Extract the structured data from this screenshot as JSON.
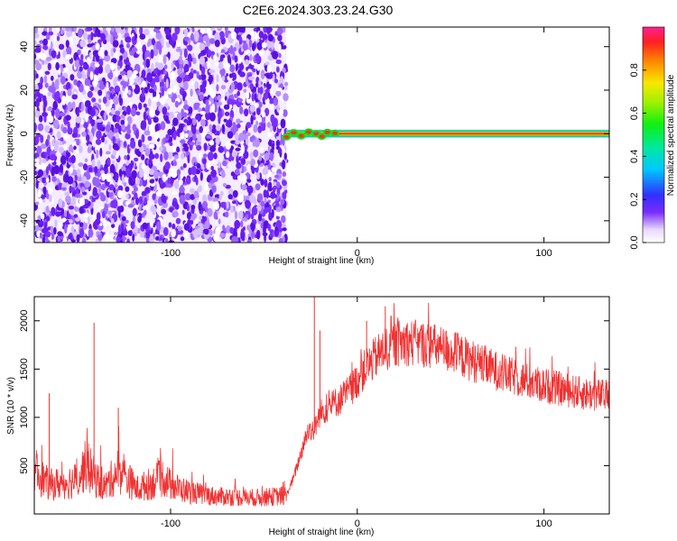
{
  "title": "C2E6.2024.303.23.24.G30",
  "chart_data": [
    {
      "type": "heatmap",
      "xlabel": "Height of straight line (km)",
      "ylabel": "Frequency (Hz)",
      "xlim": [
        -173,
        135
      ],
      "ylim": [
        -50,
        49
      ],
      "x_ticks": [
        -100,
        0,
        100
      ],
      "y_ticks": [
        -40,
        -20,
        0,
        20,
        40
      ],
      "x_tick_labels": [
        "-100",
        "0",
        "100"
      ],
      "y_tick_labels": [
        "-40",
        "-20",
        "0",
        "20",
        "40"
      ],
      "noise_region_x": [
        -173,
        -38
      ],
      "signal_line": {
        "x_start": -38,
        "x_end": 135,
        "frequency": 0
      },
      "colorbar": {
        "label": "Normalized spectral amplitude",
        "range": [
          0,
          1
        ],
        "ticks": [
          0.0,
          0.2,
          0.4,
          0.6,
          0.8
        ],
        "tick_labels": [
          "0.0",
          "0.2",
          "0.4",
          "0.6",
          "0.8"
        ]
      }
    },
    {
      "type": "line",
      "xlabel": "Height of straight line (km)",
      "ylabel": "SNR (10 * v/v)",
      "xlim": [
        -173,
        135
      ],
      "ylim": [
        0,
        2250
      ],
      "x_ticks": [
        -100,
        0,
        100
      ],
      "y_ticks": [
        500,
        1000,
        1500,
        2000
      ],
      "x_tick_labels": [
        "-100",
        "0",
        "100"
      ],
      "y_tick_labels": [
        "500",
        "1000",
        "1500",
        "2000"
      ],
      "series_color": "#f03232",
      "series": [
        {
          "x": [
            -173,
            -165,
            -158,
            -150,
            -145,
            -141,
            -135,
            -128,
            -122,
            -118,
            -110,
            -104,
            -100,
            -95,
            -90,
            -82,
            -75,
            -68,
            -60,
            -52,
            -45,
            -38,
            -34,
            -30,
            -26,
            -23,
            -20,
            -16,
            -12,
            -8,
            -4,
            0,
            4,
            8,
            12,
            16,
            20,
            25,
            30,
            35,
            40,
            45,
            50,
            55,
            60,
            65,
            70,
            75,
            80,
            85,
            90,
            95,
            100,
            105,
            110,
            115,
            120,
            125,
            130,
            135
          ],
          "y": [
            450,
            300,
            320,
            350,
            520,
            380,
            280,
            450,
            340,
            260,
            320,
            380,
            300,
            260,
            230,
            200,
            180,
            180,
            170,
            170,
            180,
            190,
            380,
            640,
            880,
            870,
            1040,
            1100,
            1150,
            1200,
            1280,
            1380,
            1500,
            1580,
            1660,
            1710,
            1760,
            1780,
            1770,
            1760,
            1740,
            1710,
            1680,
            1640,
            1600,
            1560,
            1520,
            1480,
            1440,
            1410,
            1380,
            1350,
            1330,
            1310,
            1290,
            1270,
            1250,
            1240,
            1230,
            1220
          ],
          "spikes": [
            {
              "x": -141,
              "y": 1980
            },
            {
              "x": -165,
              "y": 1250
            },
            {
              "x": -128,
              "y": 1100
            },
            {
              "x": -23,
              "y": 2250
            },
            {
              "x": -20,
              "y": 1900
            },
            {
              "x": 5,
              "y": 2000
            },
            {
              "x": 15,
              "y": 2150
            },
            {
              "x": 18,
              "y": 2050
            }
          ]
        }
      ]
    }
  ]
}
